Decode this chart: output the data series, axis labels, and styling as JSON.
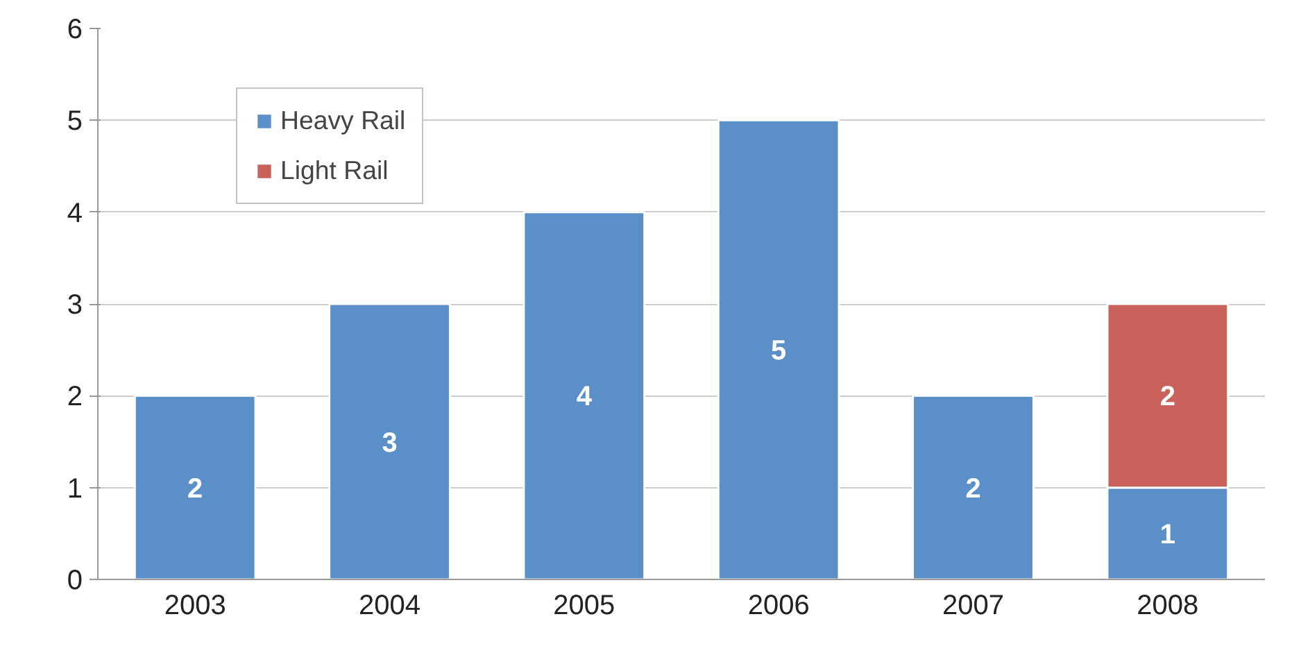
{
  "chart_data": {
    "type": "bar",
    "stacked": true,
    "categories": [
      "2003",
      "2004",
      "2005",
      "2006",
      "2007",
      "2008"
    ],
    "series": [
      {
        "name": "Heavy Rail",
        "color": "#5b8fc7",
        "values": [
          2,
          3,
          4,
          5,
          2,
          1
        ]
      },
      {
        "name": "Light Rail",
        "color": "#c9625a",
        "values": [
          null,
          null,
          null,
          null,
          null,
          2
        ]
      }
    ],
    "ylim": [
      0,
      6
    ],
    "yticks": [
      0,
      1,
      2,
      3,
      4,
      5,
      6
    ],
    "grid": "y",
    "legend": "top left",
    "data_labels": true
  }
}
